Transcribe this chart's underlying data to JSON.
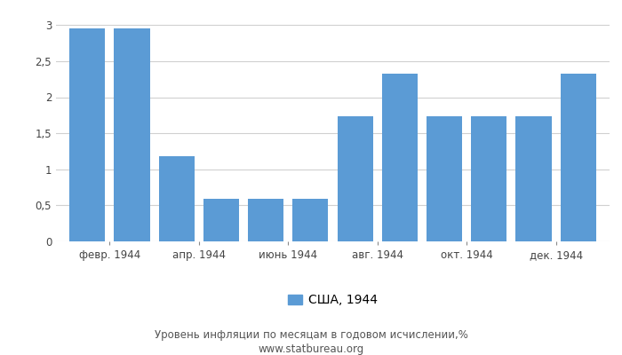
{
  "values": [
    2.96,
    2.96,
    1.18,
    0.59,
    0.59,
    0.59,
    1.74,
    2.33,
    1.74,
    1.74,
    1.74,
    2.33
  ],
  "xtick_labels": [
    "февр. 1944",
    "апр. 1944",
    "июнь 1944",
    "авг. 1944",
    "окт. 1944",
    "дек. 1944"
  ],
  "xtick_positions": [
    1.5,
    3.5,
    5.5,
    7.5,
    9.5,
    11.5
  ],
  "bar_color": "#5b9bd5",
  "ylim": [
    0,
    3.2
  ],
  "yticks": [
    0,
    0.5,
    1.0,
    1.5,
    2.0,
    2.5,
    3.0
  ],
  "ytick_labels": [
    "0",
    "0,5",
    "1",
    "1,5",
    "2",
    "2,5",
    "3"
  ],
  "legend_label": "США, 1944",
  "subtitle": "Уровень инфляции по месяцам в годовом исчислении,%",
  "website": "www.statbureau.org",
  "grid_color": "#d0d0d0",
  "background_color": "#ffffff",
  "bar_width": 0.8,
  "tick_fontsize": 8.5,
  "legend_fontsize": 10,
  "subtitle_fontsize": 8.5
}
